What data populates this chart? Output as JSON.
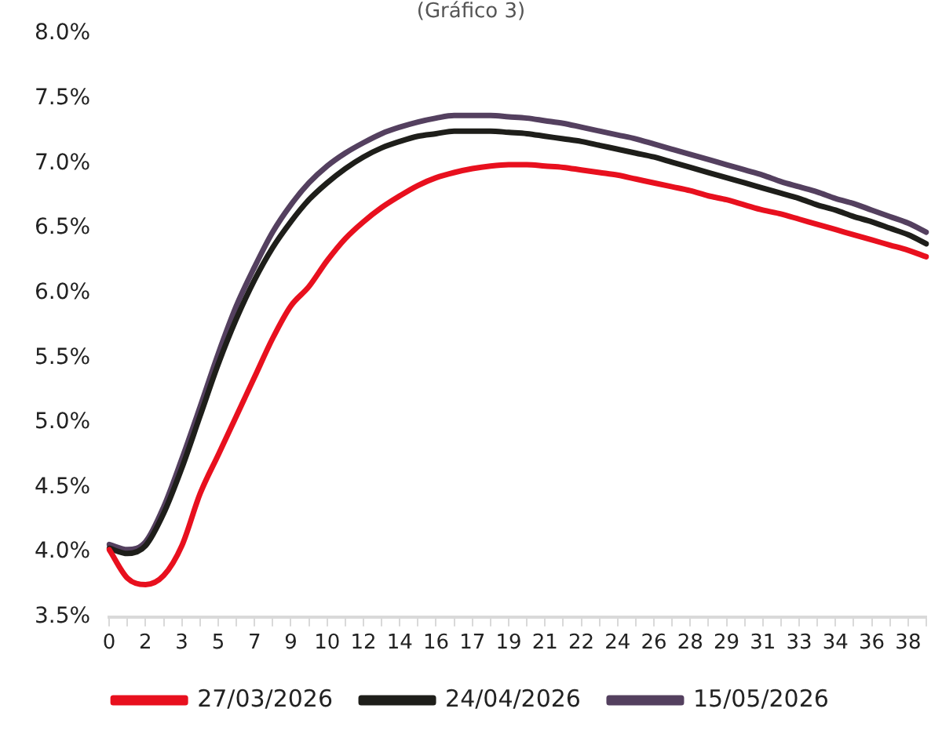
{
  "chart_data": {
    "type": "line",
    "title": "(Gráfico 3)",
    "categories": [
      "0",
      null,
      "2",
      null,
      "3",
      null,
      "5",
      null,
      "7",
      null,
      "9",
      null,
      "10",
      null,
      "12",
      null,
      "14",
      null,
      "16",
      null,
      "17",
      null,
      "19",
      null,
      "21",
      null,
      "22",
      null,
      "24",
      null,
      "26",
      null,
      "28",
      null,
      "29",
      null,
      "31",
      null,
      "33",
      null,
      "34",
      null,
      "36",
      null,
      "38",
      null
    ],
    "series": [
      {
        "name": "27/03/2026",
        "color": "#e8101e",
        "values": [
          4.02,
          3.8,
          3.75,
          3.82,
          4.05,
          4.45,
          4.75,
          5.05,
          5.35,
          5.65,
          5.9,
          6.05,
          6.25,
          6.42,
          6.55,
          6.66,
          6.75,
          6.83,
          6.89,
          6.93,
          6.96,
          6.98,
          6.99,
          6.99,
          6.98,
          6.97,
          6.95,
          6.93,
          6.91,
          6.88,
          6.85,
          6.82,
          6.79,
          6.75,
          6.72,
          6.68,
          6.64,
          6.61,
          6.57,
          6.53,
          6.49,
          6.45,
          6.41,
          6.37,
          6.33,
          6.28
        ]
      },
      {
        "name": "24/04/2026",
        "color": "#1e1e1a",
        "values": [
          4.03,
          3.99,
          4.05,
          4.3,
          4.65,
          5.05,
          5.45,
          5.8,
          6.1,
          6.35,
          6.55,
          6.72,
          6.85,
          6.96,
          7.05,
          7.12,
          7.17,
          7.21,
          7.23,
          7.25,
          7.25,
          7.25,
          7.24,
          7.23,
          7.21,
          7.19,
          7.17,
          7.14,
          7.11,
          7.08,
          7.05,
          7.01,
          6.97,
          6.93,
          6.89,
          6.85,
          6.81,
          6.77,
          6.73,
          6.68,
          6.64,
          6.59,
          6.55,
          6.5,
          6.45,
          6.38
        ]
      },
      {
        "name": "15/05/2026",
        "color": "#54405f",
        "values": [
          4.06,
          4.02,
          4.08,
          4.35,
          4.72,
          5.12,
          5.53,
          5.9,
          6.2,
          6.47,
          6.68,
          6.85,
          6.98,
          7.08,
          7.16,
          7.23,
          7.28,
          7.32,
          7.35,
          7.37,
          7.37,
          7.37,
          7.36,
          7.35,
          7.33,
          7.31,
          7.28,
          7.25,
          7.22,
          7.19,
          7.15,
          7.11,
          7.07,
          7.03,
          6.99,
          6.95,
          6.91,
          6.86,
          6.82,
          6.78,
          6.73,
          6.69,
          6.64,
          6.59,
          6.54,
          6.47
        ]
      }
    ],
    "ylim": [
      3.5,
      8.0
    ],
    "yticks": [
      {
        "value": 3.5,
        "label": "3.5%"
      },
      {
        "value": 4.0,
        "label": "4.0%"
      },
      {
        "value": 4.5,
        "label": "4.5%"
      },
      {
        "value": 5.0,
        "label": "5.0%"
      },
      {
        "value": 5.5,
        "label": "5.5%"
      },
      {
        "value": 6.0,
        "label": "6.0%"
      },
      {
        "value": 6.5,
        "label": "6.5%"
      },
      {
        "value": 7.0,
        "label": "7.0%"
      },
      {
        "value": 7.5,
        "label": "7.5%"
      },
      {
        "value": 8.0,
        "label": "8.0%"
      }
    ],
    "grid": false,
    "legend": "bottom",
    "marker": "none",
    "line_style": "solid"
  }
}
